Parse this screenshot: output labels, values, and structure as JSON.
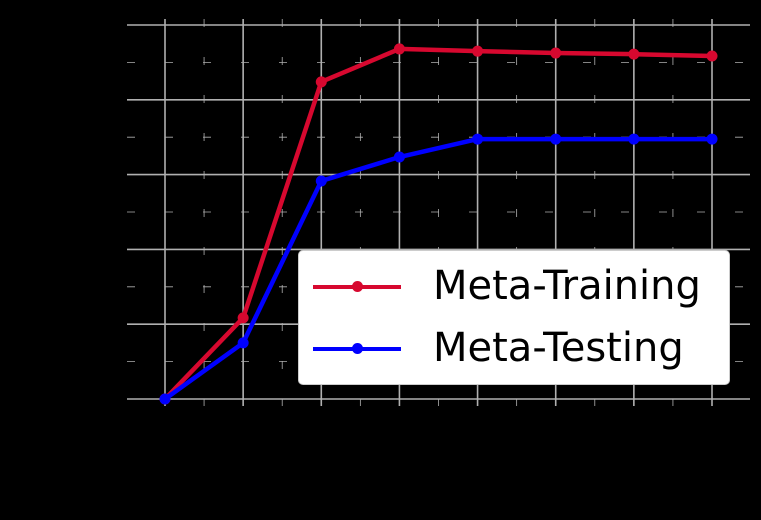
{
  "chart_data": {
    "type": "line",
    "title": "",
    "xlabel": "",
    "ylabel": "",
    "x": [
      1,
      2,
      3,
      4,
      5,
      6,
      7,
      8
    ],
    "x_tick_labels": [
      "",
      "",
      "",
      "",
      "",
      "",
      "",
      ""
    ],
    "y_tick_labels": [
      "",
      "",
      "",
      "",
      "",
      ""
    ],
    "ylim": [
      0,
      1
    ],
    "yticks": [
      0,
      0.2,
      0.4,
      0.6,
      0.8,
      1.0
    ],
    "grid": true,
    "legend_position": "lower right",
    "series": [
      {
        "name": "Meta-Training",
        "color": "#d7082f",
        "marker": "circle",
        "values": [
          0.0,
          0.217,
          0.848,
          0.936,
          0.93,
          0.925,
          0.922,
          0.917
        ]
      },
      {
        "name": "Meta-Testing",
        "color": "#0000ff",
        "marker": "circle",
        "values": [
          0.0,
          0.15,
          0.583,
          0.647,
          0.695,
          0.695,
          0.695,
          0.695
        ]
      }
    ]
  },
  "legend": {
    "items": [
      {
        "label": "Meta-Training",
        "color": "#d7082f"
      },
      {
        "label": "Meta-Testing",
        "color": "#0000ff"
      }
    ]
  },
  "colors": {
    "background": "#000000",
    "grid": "#b0b0b0",
    "legend_bg": "#ffffff"
  }
}
